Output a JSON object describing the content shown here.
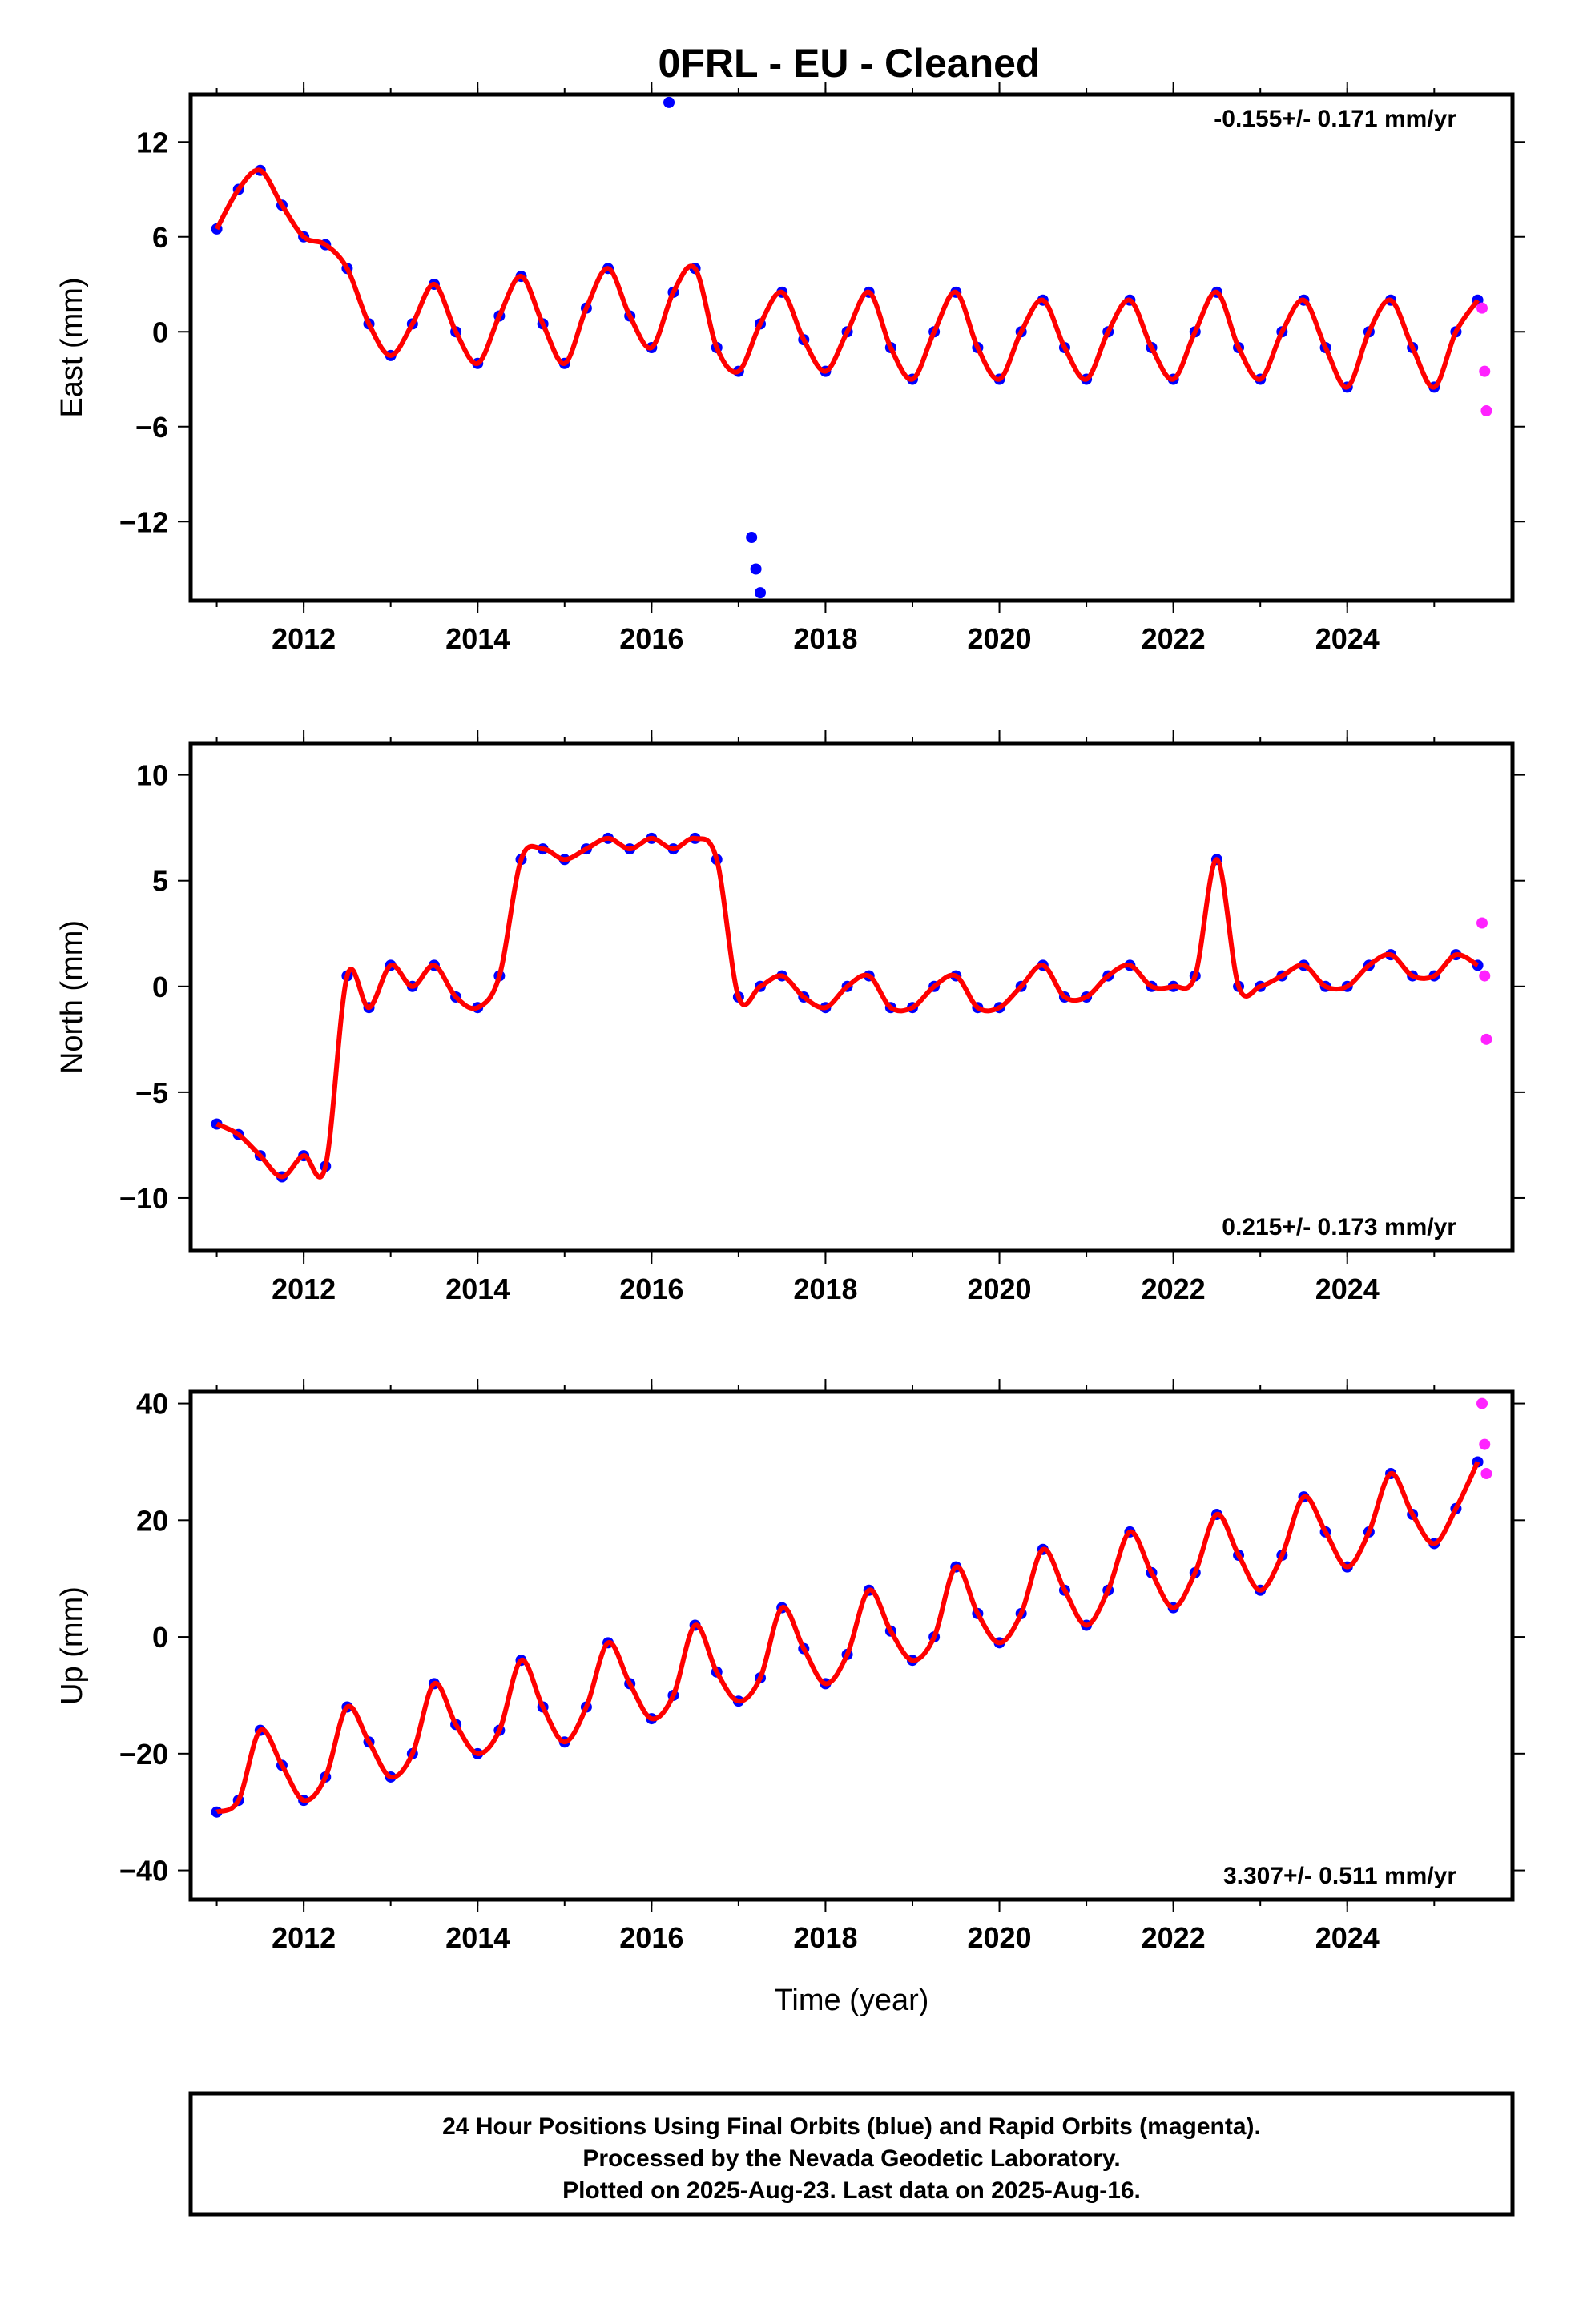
{
  "title": "0FRL  - EU - Cleaned",
  "x_axis_label": "Time (year)",
  "colors": {
    "final_orbits": "#0000ff",
    "rapid_orbits": "#ff22ff",
    "model": "#ff0000",
    "frame": "#000000"
  },
  "footer": {
    "line1": "24 Hour Positions Using Final Orbits (blue) and Rapid Orbits (magenta).",
    "line2": "Processed by the Nevada Geodetic Laboratory.",
    "line3": "Plotted on 2025-Aug-23. Last data on 2025-Aug-16."
  },
  "chart_data": [
    {
      "type": "scatter",
      "ylabel": "East (mm)",
      "rate_text": "-0.155+/- 0.171 mm/yr",
      "xlim": [
        2010.7,
        2025.9
      ],
      "ylim": [
        -17,
        15
      ],
      "xticks": [
        2012,
        2014,
        2016,
        2018,
        2020,
        2022,
        2024
      ],
      "yticks": [
        12,
        6,
        0,
        -6,
        -12
      ],
      "series": [
        {
          "x": [
            2011.0,
            2011.25,
            2011.5,
            2011.75,
            2012.0,
            2012.25,
            2012.5,
            2012.75,
            2013.0,
            2013.25,
            2013.5,
            2013.75,
            2014.0,
            2014.25,
            2014.5,
            2014.75,
            2015.0,
            2015.25,
            2015.5,
            2015.75,
            2016.0,
            2016.25,
            2016.5,
            2016.75,
            2017.0,
            2017.25,
            2017.5,
            2017.75,
            2018.0,
            2018.25,
            2018.5,
            2018.75,
            2019.0,
            2019.25,
            2019.5,
            2019.75,
            2020.0,
            2020.25,
            2020.5,
            2020.75,
            2021.0,
            2021.25,
            2021.5,
            2021.75,
            2022.0,
            2022.25,
            2022.5,
            2022.75,
            2023.0,
            2023.25,
            2023.5,
            2023.75,
            2024.0,
            2024.25,
            2024.5,
            2024.75,
            2025.0,
            2025.25,
            2025.5
          ],
          "y": [
            6.5,
            9.0,
            10.2,
            8.0,
            6.0,
            5.5,
            4.0,
            0.5,
            -1.5,
            0.5,
            3.0,
            0.0,
            -2.0,
            1.0,
            3.5,
            0.5,
            -2.0,
            1.5,
            4.0,
            1.0,
            -1.0,
            2.5,
            4.0,
            -1.0,
            -2.5,
            0.5,
            2.5,
            -0.5,
            -2.5,
            0.0,
            2.5,
            -1.0,
            -3.0,
            0.0,
            2.5,
            -1.0,
            -3.0,
            0.0,
            2.0,
            -1.0,
            -3.0,
            0.0,
            2.0,
            -1.0,
            -3.0,
            0.0,
            2.5,
            -1.0,
            -3.0,
            0.0,
            2.0,
            -1.0,
            -3.5,
            0.0,
            2.0,
            -1.0,
            -3.5,
            0.0,
            2.0
          ]
        },
        {
          "x": [
            2016.2,
            2017.15,
            2017.2,
            2017.25
          ],
          "y": [
            14.5,
            -13,
            -15,
            -16.5
          ]
        },
        {
          "x": [
            2025.55,
            2025.58,
            2025.6
          ],
          "y": [
            1.5,
            -2.5,
            -5
          ]
        }
      ]
    },
    {
      "type": "scatter",
      "ylabel": "North (mm)",
      "rate_text": "0.215+/- 0.173 mm/yr",
      "xlim": [
        2010.7,
        2025.9
      ],
      "ylim": [
        -12.5,
        11.5
      ],
      "xticks": [
        2012,
        2014,
        2016,
        2018,
        2020,
        2022,
        2024
      ],
      "yticks": [
        10,
        5,
        0,
        -5,
        -10
      ],
      "series": [
        {
          "x": [
            2011.0,
            2011.25,
            2011.5,
            2011.75,
            2012.0,
            2012.25,
            2012.5,
            2012.75,
            2013.0,
            2013.25,
            2013.5,
            2013.75,
            2014.0,
            2014.25,
            2014.5,
            2014.75,
            2015.0,
            2015.25,
            2015.5,
            2015.75,
            2016.0,
            2016.25,
            2016.5,
            2016.75,
            2017.0,
            2017.25,
            2017.5,
            2017.75,
            2018.0,
            2018.25,
            2018.5,
            2018.75,
            2019.0,
            2019.25,
            2019.5,
            2019.75,
            2020.0,
            2020.25,
            2020.5,
            2020.75,
            2021.0,
            2021.25,
            2021.5,
            2021.75,
            2022.0,
            2022.25,
            2022.5,
            2022.75,
            2023.0,
            2023.25,
            2023.5,
            2023.75,
            2024.0,
            2024.25,
            2024.5,
            2024.75,
            2025.0,
            2025.25,
            2025.5
          ],
          "y": [
            -6.5,
            -7.0,
            -8.0,
            -9.0,
            -8.0,
            -8.5,
            0.5,
            -1.0,
            1.0,
            0.0,
            1.0,
            -0.5,
            -1.0,
            0.5,
            6.0,
            6.5,
            6.0,
            6.5,
            7.0,
            6.5,
            7.0,
            6.5,
            7.0,
            6.0,
            -0.5,
            0.0,
            0.5,
            -0.5,
            -1.0,
            0.0,
            0.5,
            -1.0,
            -1.0,
            0.0,
            0.5,
            -1.0,
            -1.0,
            0.0,
            1.0,
            -0.5,
            -0.5,
            0.5,
            1.0,
            0.0,
            0.0,
            0.5,
            6.0,
            0.0,
            0.0,
            0.5,
            1.0,
            0.0,
            0.0,
            1.0,
            1.5,
            0.5,
            0.5,
            1.5,
            1.0
          ]
        },
        {
          "x": [
            2025.55,
            2025.58,
            2025.6
          ],
          "y": [
            3.0,
            0.5,
            -2.5
          ]
        }
      ]
    },
    {
      "type": "scatter",
      "ylabel": "Up (mm)",
      "rate_text": "3.307+/- 0.511 mm/yr",
      "xlim": [
        2010.7,
        2025.9
      ],
      "ylim": [
        -45,
        42
      ],
      "xticks": [
        2012,
        2014,
        2016,
        2018,
        2020,
        2022,
        2024
      ],
      "yticks": [
        40,
        20,
        0,
        -20,
        -40
      ],
      "series": [
        {
          "x": [
            2011.0,
            2011.25,
            2011.5,
            2011.75,
            2012.0,
            2012.25,
            2012.5,
            2012.75,
            2013.0,
            2013.25,
            2013.5,
            2013.75,
            2014.0,
            2014.25,
            2014.5,
            2014.75,
            2015.0,
            2015.25,
            2015.5,
            2015.75,
            2016.0,
            2016.25,
            2016.5,
            2016.75,
            2017.0,
            2017.25,
            2017.5,
            2017.75,
            2018.0,
            2018.25,
            2018.5,
            2018.75,
            2019.0,
            2019.25,
            2019.5,
            2019.75,
            2020.0,
            2020.25,
            2020.5,
            2020.75,
            2021.0,
            2021.25,
            2021.5,
            2021.75,
            2022.0,
            2022.25,
            2022.5,
            2022.75,
            2023.0,
            2023.25,
            2023.5,
            2023.75,
            2024.0,
            2024.25,
            2024.5,
            2024.75,
            2025.0,
            2025.25,
            2025.5
          ],
          "y": [
            -30,
            -28,
            -16,
            -22,
            -28,
            -24,
            -12,
            -18,
            -24,
            -20,
            -8,
            -15,
            -20,
            -16,
            -4,
            -12,
            -18,
            -12,
            -1,
            -8,
            -14,
            -10,
            2,
            -6,
            -11,
            -7,
            5,
            -2,
            -8,
            -3,
            8,
            1,
            -4,
            0,
            12,
            4,
            -1,
            4,
            15,
            8,
            2,
            8,
            18,
            11,
            5,
            11,
            21,
            14,
            8,
            14,
            24,
            18,
            12,
            18,
            28,
            21,
            16,
            22,
            30
          ]
        },
        {
          "x": [
            2025.55,
            2025.58,
            2025.6
          ],
          "y": [
            40,
            33,
            28
          ]
        }
      ]
    }
  ]
}
